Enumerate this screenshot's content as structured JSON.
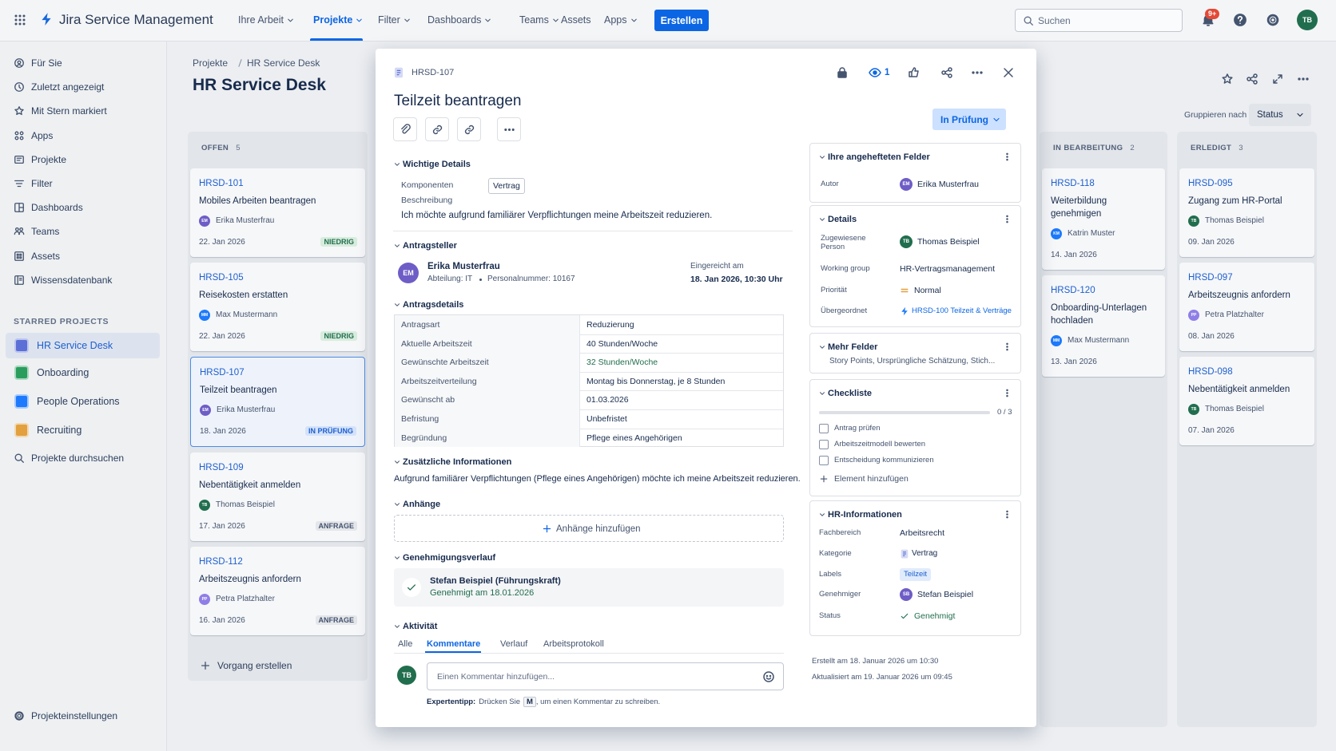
{
  "topnav": {
    "product": "Jira Service Management",
    "menu": [
      "Ihre Arbeit",
      "Projekte",
      "Filter",
      "Dashboards",
      "Teams",
      "Assets",
      "Apps"
    ],
    "create": "Erstellen",
    "search_placeholder": "Suchen",
    "notification_count": "9+",
    "user_initials": "TB",
    "user_color": "#216e4e"
  },
  "sidebar": {
    "items": [
      "Für Sie",
      "Zuletzt angezeigt",
      "Mit Stern markiert",
      "Apps",
      "Projekte",
      "Filter",
      "Dashboards",
      "Teams",
      "Assets",
      "Wissensdatenbank"
    ],
    "starred_heading": "STARRED PROJECTS",
    "starred_projects": [
      {
        "name": "HR Service Desk",
        "color": "#5b6fd6"
      },
      {
        "name": "Onboarding",
        "color": "#2a9d5c"
      },
      {
        "name": "People Operations",
        "color": "#1d7afc"
      },
      {
        "name": "Recruiting",
        "color": "#e2a03f"
      }
    ],
    "search_projects": "Projekte durchsuchen",
    "settings": "Projekteinstellungen"
  },
  "board": {
    "breadcrumb": [
      "Projekte",
      "HR Service Desk"
    ],
    "title": "HR Service Desk",
    "group_by_label": "Gruppieren nach",
    "group_by_value": "Status",
    "create_issue": "Vorgang erstellen",
    "columns": [
      {
        "name": "OFFEN",
        "count": "5",
        "cards": [
          {
            "key": "HRSD-101",
            "title": "Mobiles Arbeiten beantragen",
            "initials": "EM",
            "avatar_color": "#6e5dc6",
            "assignee": "Erika Musterfrau",
            "date": "22. Jan 2026",
            "status": "NIEDRIG"
          },
          {
            "key": "HRSD-105",
            "title": "Reisekosten erstatten",
            "initials": "MM",
            "avatar_color": "#1d7afc",
            "assignee": "Max Mustermann",
            "date": "22. Jan 2026",
            "status": "NIEDRIG"
          },
          {
            "key": "HRSD-107",
            "title": "Teilzeit beantragen",
            "initials": "EM",
            "avatar_color": "#6e5dc6",
            "assignee": "Erika Musterfrau",
            "date": "18. Jan 2026",
            "status": "IN PRÜFUNG"
          },
          {
            "key": "HRSD-109",
            "title": "Nebentätigkeit anmelden",
            "initials": "TB",
            "avatar_color": "#216e4e",
            "assignee": "Thomas Beispiel",
            "date": "17. Jan 2026",
            "status": "ANFRAGE"
          },
          {
            "key": "HRSD-112",
            "title": "Arbeitszeugnis anfordern",
            "initials": "PP",
            "avatar_color": "#8f7ee7",
            "assignee": "Petra Platzhalter",
            "date": "16. Jan 2026",
            "status": "ANFRAGE"
          }
        ]
      },
      {
        "name": "IN BEARBEITUNG",
        "count": "2",
        "cards": [
          {
            "key": "HRSD-118",
            "title": "Weiterbildung genehmigen",
            "initials": "KM",
            "avatar_color": "#1d7afc",
            "assignee": "Katrin Muster",
            "date": "14. Jan 2026"
          },
          {
            "key": "HRSD-120",
            "title": "Onboarding-Unterlagen hochladen",
            "initials": "MM",
            "avatar_color": "#1d7afc",
            "assignee": "Max Mustermann",
            "date": "13. Jan 2026"
          }
        ]
      },
      {
        "name": "ERLEDIGT",
        "count": "3",
        "cards": [
          {
            "key": "HRSD-095",
            "title": "Zugang zum HR-Portal",
            "initials": "TB",
            "avatar_color": "#216e4e",
            "assignee": "Thomas Beispiel",
            "date": "09. Jan 2026"
          },
          {
            "key": "HRSD-097",
            "title": "Arbeitszeugnis anfordern",
            "initials": "PP",
            "avatar_color": "#8f7ee7",
            "assignee": "Petra Platzhalter",
            "date": "08. Jan 2026"
          },
          {
            "key": "HRSD-098",
            "title": "Nebentätigkeit anmelden",
            "initials": "TB",
            "avatar_color": "#216e4e",
            "assignee": "Thomas Beispiel",
            "date": "07. Jan 2026"
          }
        ]
      }
    ]
  },
  "issue": {
    "key": "HRSD-107",
    "watchers": "1",
    "title": "Teilzeit beantragen",
    "status": "In Prüfung",
    "key_details": {
      "heading": "Wichtige Details",
      "component_label": "Komponenten",
      "component": "Vertrag",
      "description_label": "Beschreibung",
      "description": "Ich möchte aufgrund familiärer Verpflichtungen meine Arbeitszeit reduzieren."
    },
    "requester": {
      "heading": "Antragsteller",
      "initials": "EM",
      "avatar_color": "#6e5dc6",
      "name": "Erika Musterfrau",
      "department": "Abteilung: IT",
      "personnel_number": "Personalnummer: 10167",
      "submitted_label": "Eingereicht am",
      "submitted": "18. Jan 2026, 10:30 Uhr"
    },
    "request_details": {
      "heading": "Antragsdetails",
      "rows": [
        [
          "Antragsart",
          "Reduzierung"
        ],
        [
          "Aktuelle Arbeitszeit",
          "40 Stunden/Woche"
        ],
        [
          "Gewünschte Arbeitszeit",
          "32 Stunden/Woche"
        ],
        [
          "Arbeitszeitverteilung",
          "Montag bis Donnerstag, je 8 Stunden"
        ],
        [
          "Gewünscht ab",
          "01.03.2026"
        ],
        [
          "Befristung",
          "Unbefristet"
        ],
        [
          "Begründung",
          "Pflege eines Angehörigen"
        ]
      ]
    },
    "additional_info": {
      "heading": "Zusätzliche Informationen",
      "text": "Aufgrund familiärer Verpflichtungen (Pflege eines Angehörigen) möchte ich meine Arbeitszeit reduzieren."
    },
    "attachments": {
      "heading": "Anhänge",
      "add": "Anhänge hinzufügen"
    },
    "approval_history": {
      "heading": "Genehmigungsverlauf",
      "approver": "Stefan Beispiel (Führungskraft)",
      "status": "Genehmigt am 18.01.2026"
    },
    "activity": {
      "heading": "Aktivität",
      "tabs": [
        "Alle",
        "Kommentare",
        "Verlauf",
        "Arbeitsprotokoll"
      ],
      "user_initials": "TB",
      "user_color": "#216e4e",
      "comment_placeholder": "Einen Kommentar hinzufügen...",
      "tip_label": "Expertentipp:",
      "tip_before": "Drücken Sie",
      "tip_key": "M",
      "tip_after": ", um einen Kommentar zu schreiben."
    },
    "pinned_fields": {
      "heading": "Ihre angehefteten Felder",
      "author_label": "Autor",
      "author_initials": "EM",
      "author_color": "#6e5dc6",
      "author": "Erika Musterfrau"
    },
    "details": {
      "heading": "Details",
      "assignee_label": "Zugewiesene Person",
      "assignee_initials": "TB",
      "assignee_color": "#216e4e",
      "assignee": "Thomas Beispiel",
      "working_group_label": "Working group",
      "working_group": "HR-Vertragsmanagement",
      "priority_label": "Priorität",
      "priority": "Normal",
      "parent_label": "Übergeordnet",
      "parent": "HRSD-100 Teilzeit & Verträge"
    },
    "more_fields": {
      "heading": "Mehr Felder",
      "summary": "Story Points, Ursprüngliche Schätzung, Stich..."
    },
    "checklist": {
      "heading": "Checkliste",
      "progress": "0 / 3",
      "items": [
        "Antrag prüfen",
        "Arbeitszeitmodell bewerten",
        "Entscheidung kommunizieren"
      ],
      "add": "Element hinzufügen"
    },
    "hr_info": {
      "heading": "HR-Informationen",
      "area_label": "Fachbereich",
      "area": "Arbeitsrecht",
      "category_label": "Kategorie",
      "category": "Vertrag",
      "labels_label": "Labels",
      "label": "Teilzeit",
      "approver_label": "Genehmiger",
      "approver_initials": "SB",
      "approver_color": "#6e5dc6",
      "approver": "Stefan Beispiel",
      "status_label": "Status",
      "status": "Genehmigt"
    },
    "created": "Erstellt am 18. Januar 2026 um 10:30",
    "updated": "Aktualisiert am 19. Januar 2026 um 09:45"
  }
}
